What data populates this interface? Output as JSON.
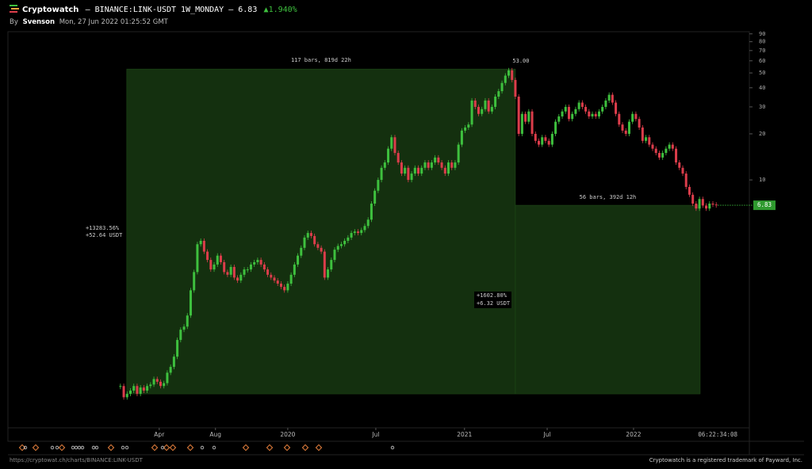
{
  "header": {
    "brand": "Cryptowatch",
    "title": "– BINANCE:LINK-USDT 1W_MONDAY – 6.83",
    "change": "▲1.940%",
    "by_prefix": "By",
    "author": "Svenson",
    "timestamp": "Mon, 27 Jun 2022 01:25:52 GMT"
  },
  "chart_data": {
    "type": "candlestick",
    "log_scale": true,
    "up_color": "#3ec03e",
    "down_color": "#dc3d4b",
    "values": [
      0.45,
      0.38,
      0.4,
      0.42,
      0.45,
      0.4,
      0.44,
      0.42,
      0.45,
      0.46,
      0.5,
      0.48,
      0.45,
      0.47,
      0.55,
      0.6,
      0.7,
      0.9,
      1.05,
      1.1,
      1.3,
      1.9,
      2.5,
      3.8,
      4.0,
      3.4,
      3.0,
      2.6,
      2.8,
      3.2,
      2.9,
      2.5,
      2.4,
      2.7,
      2.3,
      2.2,
      2.4,
      2.6,
      2.6,
      2.8,
      2.9,
      3.0,
      2.8,
      2.6,
      2.4,
      2.3,
      2.2,
      2.1,
      2.0,
      1.9,
      2.1,
      2.4,
      2.8,
      3.2,
      3.6,
      4.2,
      4.5,
      4.3,
      3.8,
      3.6,
      3.4,
      2.3,
      2.6,
      3.0,
      3.5,
      3.7,
      3.8,
      4.0,
      4.2,
      4.5,
      4.6,
      4.5,
      4.7,
      5.0,
      5.5,
      7.0,
      8.5,
      10.0,
      12,
      13,
      16,
      19,
      15,
      13,
      11,
      12,
      10,
      11,
      12,
      11,
      12,
      13,
      12,
      13,
      14,
      13,
      12,
      11,
      13,
      12,
      13,
      17,
      21,
      22,
      23,
      33,
      30,
      27,
      29,
      33,
      28,
      30,
      35,
      38,
      43,
      48,
      52,
      45,
      35,
      20,
      27,
      24,
      28,
      20,
      18,
      17,
      19,
      18,
      17,
      20,
      24,
      26,
      28,
      30,
      25,
      27,
      29,
      32,
      30,
      28,
      26,
      27,
      26,
      28,
      30,
      33,
      36,
      32,
      27,
      23,
      21,
      20,
      24,
      27,
      25,
      22,
      18,
      19,
      17,
      16,
      15,
      14,
      15,
      16,
      17,
      16,
      13,
      12,
      11,
      9,
      8,
      7,
      6.5,
      7.5,
      6.8,
      6.5,
      7.0,
      6.9,
      6.83
    ],
    "xlim": [
      -33.6,
      187.9
    ],
    "xticks": [
      {
        "value": 11.6,
        "label": "Apr"
      },
      {
        "value": 28.4,
        "label": "Aug"
      },
      {
        "value": 50,
        "label": "2020"
      },
      {
        "value": 76.3,
        "label": "Jul"
      },
      {
        "value": 102.8,
        "label": "2021"
      },
      {
        "value": 127.5,
        "label": "Jul"
      },
      {
        "value": 153.3,
        "label": "2022"
      }
    ],
    "countdown": "06:22:34:08",
    "ylim": [
      0.24,
      93
    ],
    "yticks": [
      10,
      20,
      30,
      40,
      50,
      60,
      70,
      80,
      90
    ],
    "last_price": 6.83,
    "measures": [
      {
        "from": 1.9,
        "to": 118,
        "low": 0.4,
        "high": 53,
        "bars": "117 bars, 819d 22h",
        "percent": "+13283.56%",
        "delta": "+52.64 USDT",
        "high_label": "53.00"
      },
      {
        "from": 118,
        "to": 173.2,
        "low": 0.4,
        "high": 6.83,
        "bars": "56 bars, 392d 12h",
        "percent": "+1602.80%",
        "delta": "+6.32 USDT"
      }
    ]
  },
  "footer": {
    "url": "https://cryptowat.ch/charts/BINANCE:LINK-USDT",
    "trademark": "Cryptowatch is a registered trademark of Payward, Inc."
  }
}
